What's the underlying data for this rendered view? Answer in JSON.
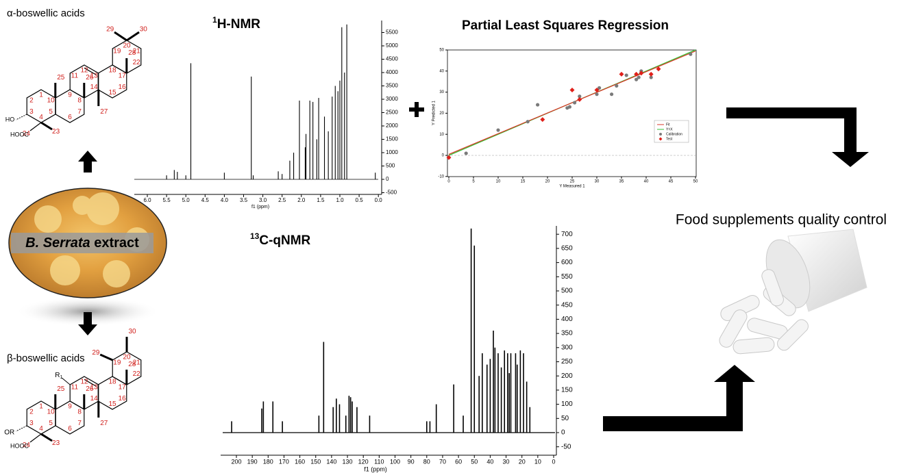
{
  "alpha": {
    "title": "α-boswellic acids",
    "atoms": [
      "1",
      "2",
      "3",
      "4",
      "5",
      "6",
      "7",
      "8",
      "9",
      "10",
      "11",
      "12",
      "13",
      "14",
      "15",
      "16",
      "17",
      "18",
      "19",
      "20",
      "21",
      "22",
      "23",
      "24",
      "25",
      "26",
      "27",
      "28",
      "29",
      "30"
    ],
    "ho": "HO",
    "cooh": "HOOC"
  },
  "beta": {
    "title": "β-boswellic acids",
    "atoms": [
      "1",
      "2",
      "3",
      "4",
      "5",
      "6",
      "7",
      "8",
      "9",
      "10",
      "11",
      "12",
      "13",
      "14",
      "15",
      "16",
      "17",
      "18",
      "19",
      "20",
      "21",
      "22",
      "23",
      "24",
      "25",
      "26",
      "27",
      "28",
      "29",
      "30"
    ],
    "r": "R",
    "r_sub": "1",
    "or": "OR",
    "cooh": "HOOC"
  },
  "extract": {
    "species": "B. Serrata",
    "word": "extract"
  },
  "h_nmr": {
    "title_sup": "1",
    "title": "H-NMR",
    "x_label": "f1 (ppm)",
    "xticks": [
      "6.0",
      "5.5",
      "5.0",
      "4.5",
      "4.0",
      "3.5",
      "3.0",
      "2.5",
      "2.0",
      "1.5",
      "1.0",
      "0.5",
      "0.0"
    ],
    "yticks": [
      -500,
      0,
      500,
      1000,
      1500,
      2000,
      2500,
      3000,
      3500,
      4000,
      4500,
      5000,
      5500
    ],
    "peaks": [
      [
        5.5,
        150
      ],
      [
        5.3,
        350
      ],
      [
        5.22,
        280
      ],
      [
        5.0,
        150
      ],
      [
        4.87,
        4350
      ],
      [
        4.0,
        250
      ],
      [
        3.3,
        3850
      ],
      [
        3.25,
        150
      ],
      [
        2.6,
        300
      ],
      [
        2.5,
        200
      ],
      [
        2.3,
        700
      ],
      [
        2.2,
        1000
      ],
      [
        2.05,
        2950
      ],
      [
        1.9,
        1200
      ],
      [
        1.88,
        1700
      ],
      [
        1.78,
        2950
      ],
      [
        1.7,
        2900
      ],
      [
        1.6,
        1500
      ],
      [
        1.55,
        3050
      ],
      [
        1.4,
        2350
      ],
      [
        1.3,
        1800
      ],
      [
        1.2,
        3100
      ],
      [
        1.12,
        3500
      ],
      [
        1.05,
        3300
      ],
      [
        1.0,
        3700
      ],
      [
        0.95,
        5700
      ],
      [
        0.88,
        4000
      ],
      [
        0.82,
        5800
      ],
      [
        0.08,
        250
      ]
    ]
  },
  "c_nmr": {
    "title_sup": "13",
    "title": "C-qNMR",
    "x_label": "f1 (ppm)",
    "xticks": [
      200,
      190,
      180,
      170,
      160,
      150,
      140,
      130,
      120,
      110,
      100,
      90,
      80,
      70,
      60,
      50,
      40,
      30,
      20,
      10,
      0
    ],
    "yticks": [
      -50,
      0,
      50,
      100,
      150,
      200,
      250,
      300,
      350,
      400,
      450,
      500,
      550,
      600,
      650,
      700
    ],
    "peaks": [
      [
        203,
        40
      ],
      [
        184,
        85
      ],
      [
        183,
        110
      ],
      [
        177,
        110
      ],
      [
        171,
        40
      ],
      [
        148,
        60
      ],
      [
        145,
        320
      ],
      [
        139,
        90
      ],
      [
        137,
        120
      ],
      [
        135,
        100
      ],
      [
        131,
        60
      ],
      [
        129,
        130
      ],
      [
        128,
        125
      ],
      [
        127,
        110
      ],
      [
        124,
        90
      ],
      [
        116,
        60
      ],
      [
        80,
        40
      ],
      [
        78,
        40
      ],
      [
        74,
        100
      ],
      [
        63,
        170
      ],
      [
        57,
        60
      ],
      [
        52,
        720
      ],
      [
        50,
        660
      ],
      [
        47,
        200
      ],
      [
        45,
        280
      ],
      [
        42,
        240
      ],
      [
        40,
        260
      ],
      [
        38,
        360
      ],
      [
        37,
        300
      ],
      [
        35,
        280
      ],
      [
        33,
        230
      ],
      [
        31,
        290
      ],
      [
        29,
        280
      ],
      [
        28,
        210
      ],
      [
        27,
        280
      ],
      [
        24,
        280
      ],
      [
        23,
        240
      ],
      [
        21,
        290
      ],
      [
        19,
        280
      ],
      [
        17,
        180
      ],
      [
        15,
        90
      ]
    ]
  },
  "pls": {
    "title": "Partial Least Squares Regression",
    "x_label": "Y Measured 1",
    "y_label": "Y Predicted 1",
    "xticks": [
      0,
      5,
      10,
      15,
      20,
      25,
      30,
      35,
      40,
      45,
      50
    ],
    "yticks": [
      -10,
      0,
      10,
      20,
      30,
      40,
      50
    ],
    "fit": [
      [
        0,
        0.5
      ],
      [
        50,
        49.5
      ]
    ],
    "identity": [
      [
        0,
        0
      ],
      [
        50,
        50
      ]
    ],
    "legend": [
      "Fit",
      "Y=X",
      "Calibration",
      "Test"
    ],
    "calibration": [
      [
        0,
        -1
      ],
      [
        3.5,
        1
      ],
      [
        10,
        12
      ],
      [
        16,
        16
      ],
      [
        18,
        24
      ],
      [
        24,
        22.5
      ],
      [
        24.5,
        23
      ],
      [
        25.5,
        25
      ],
      [
        26.5,
        28
      ],
      [
        30,
        29
      ],
      [
        30.5,
        32
      ],
      [
        33,
        29
      ],
      [
        34,
        33
      ],
      [
        36,
        38
      ],
      [
        38,
        36
      ],
      [
        38.5,
        37
      ],
      [
        39,
        40
      ],
      [
        41,
        37
      ],
      [
        49,
        48
      ]
    ],
    "test": [
      [
        0,
        -1
      ],
      [
        19,
        17
      ],
      [
        25,
        31
      ],
      [
        26.5,
        26.5
      ],
      [
        30,
        31
      ],
      [
        35,
        38.5
      ],
      [
        38,
        38.5
      ],
      [
        39,
        39
      ],
      [
        41,
        38.5
      ],
      [
        42.5,
        41
      ]
    ]
  },
  "food": "Food supplements quality control"
}
